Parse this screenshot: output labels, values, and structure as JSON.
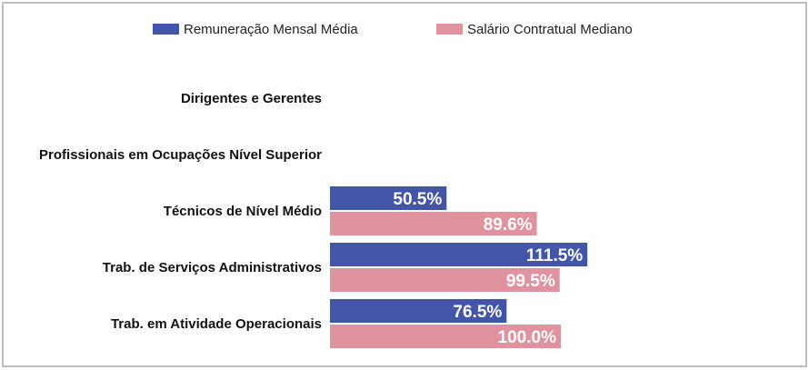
{
  "chart_data": {
    "type": "bar",
    "orientation": "horizontal",
    "categories": [
      "Dirigentes e Gerentes",
      "Profissionais em Ocupações Nível Superior",
      "Técnicos de Nível Médio",
      "Trab. de Serviços Administrativos",
      "Trab. em Atividade Operacionais"
    ],
    "series": [
      {
        "name": "Remuneração Mensal Média",
        "color": "#4355a8",
        "values": [
          null,
          null,
          50.5,
          111.5,
          76.5
        ],
        "labels": [
          "",
          "",
          "50.5%",
          "111.5%",
          "76.5%"
        ]
      },
      {
        "name": "Salário Contratual Mediano",
        "color": "#e0939f",
        "values": [
          null,
          null,
          89.6,
          99.5,
          100.0
        ],
        "labels": [
          "",
          "",
          "89.6%",
          "99.5%",
          "100.0%"
        ]
      }
    ],
    "legend_position": "top",
    "grid": false,
    "data_labels": "inside-end"
  }
}
